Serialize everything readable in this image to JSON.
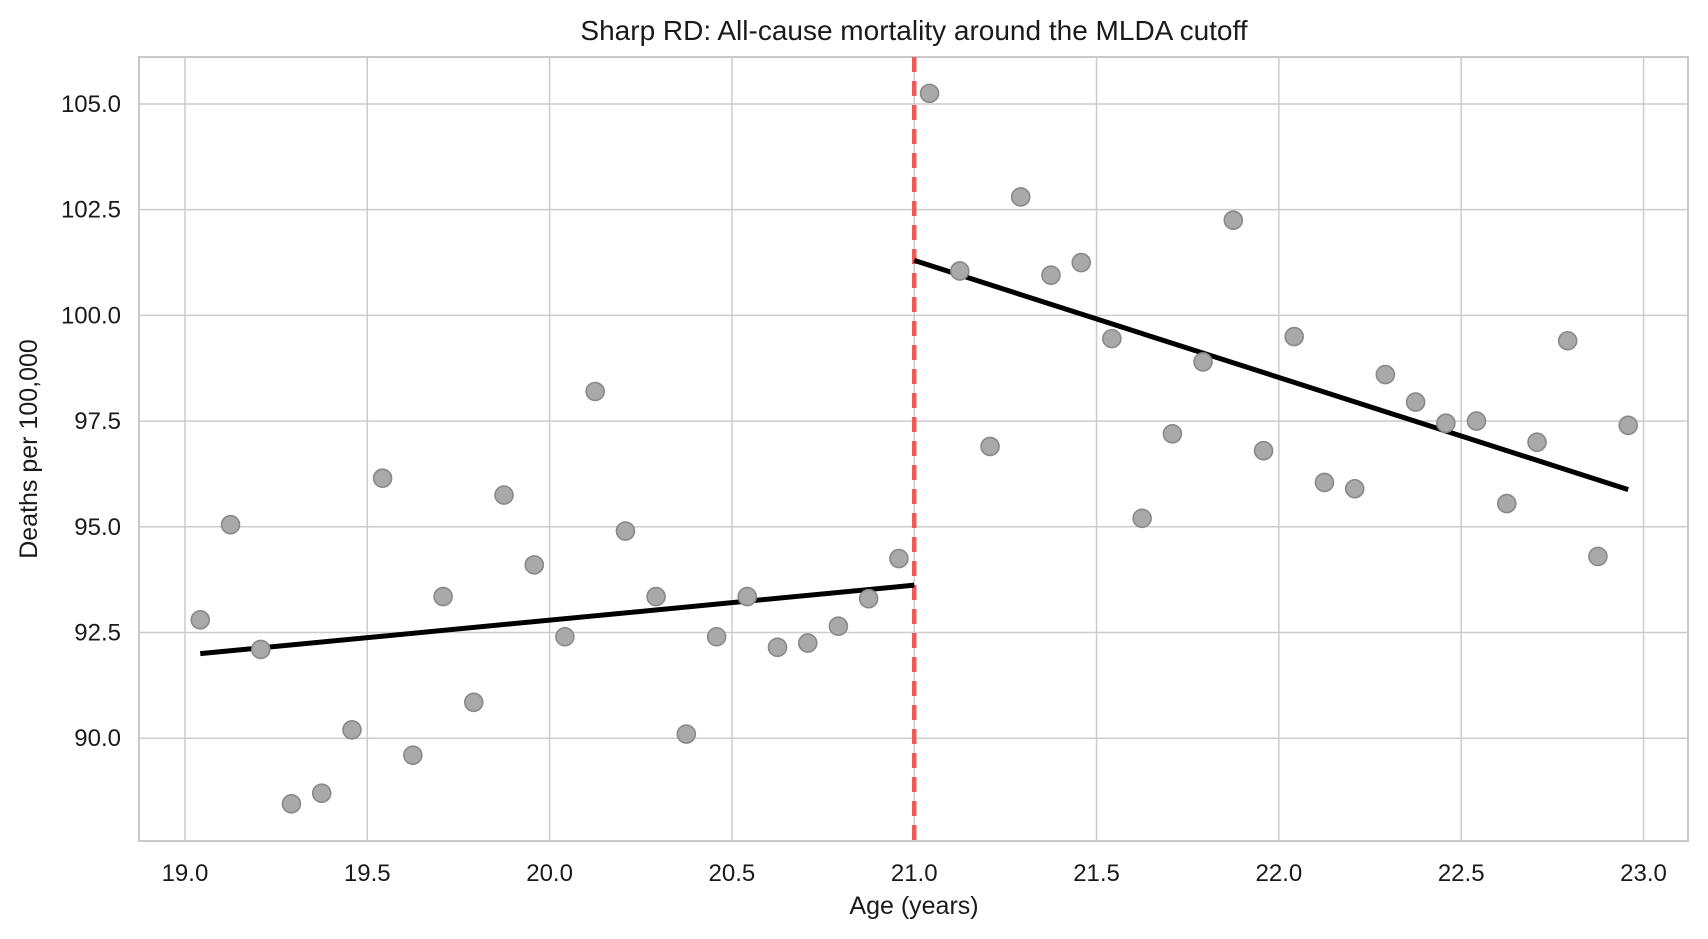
{
  "chart_data": {
    "type": "scatter",
    "title": "Sharp RD: All-cause mortality around the MLDA cutoff",
    "xlabel": "Age (years)",
    "ylabel": "Deaths per 100,000",
    "xlim": [
      18.874,
      23.122
    ],
    "ylim": [
      87.57,
      106.11
    ],
    "x_ticks": [
      19.0,
      19.5,
      20.0,
      20.5,
      21.0,
      21.5,
      22.0,
      22.5,
      23.0
    ],
    "y_ticks": [
      90.0,
      92.5,
      95.0,
      97.5,
      100.0,
      102.5,
      105.0
    ],
    "grid": true,
    "legend": "none",
    "cutoff_x": 21.0,
    "series": [
      {
        "name": "binned-means-below-cutoff",
        "points": [
          [
            19.042,
            92.8
          ],
          [
            19.125,
            95.05
          ],
          [
            19.208,
            92.1
          ],
          [
            19.292,
            88.45
          ],
          [
            19.375,
            88.7
          ],
          [
            19.458,
            90.2
          ],
          [
            19.542,
            96.15
          ],
          [
            19.625,
            89.6
          ],
          [
            19.708,
            93.35
          ],
          [
            19.792,
            90.85
          ],
          [
            19.875,
            95.75
          ],
          [
            19.958,
            94.1
          ],
          [
            20.042,
            92.4
          ],
          [
            20.125,
            98.2
          ],
          [
            20.208,
            94.9
          ],
          [
            20.292,
            93.35
          ],
          [
            20.375,
            90.1
          ],
          [
            20.458,
            92.4
          ],
          [
            20.542,
            93.35
          ],
          [
            20.625,
            92.15
          ],
          [
            20.708,
            92.25
          ],
          [
            20.792,
            92.65
          ],
          [
            20.875,
            93.3
          ],
          [
            20.958,
            94.25
          ]
        ]
      },
      {
        "name": "binned-means-above-cutoff",
        "points": [
          [
            21.042,
            105.25
          ],
          [
            21.125,
            101.05
          ],
          [
            21.208,
            96.9
          ],
          [
            21.292,
            102.8
          ],
          [
            21.375,
            100.95
          ],
          [
            21.458,
            101.25
          ],
          [
            21.542,
            99.45
          ],
          [
            21.625,
            95.2
          ],
          [
            21.708,
            97.2
          ],
          [
            21.792,
            98.9
          ],
          [
            21.875,
            102.25
          ],
          [
            21.958,
            96.8
          ],
          [
            22.042,
            99.5
          ],
          [
            22.125,
            96.05
          ],
          [
            22.208,
            95.9
          ],
          [
            22.292,
            98.6
          ],
          [
            22.375,
            97.95
          ],
          [
            22.458,
            97.45
          ],
          [
            22.542,
            97.5
          ],
          [
            22.625,
            95.55
          ],
          [
            22.708,
            97.0
          ],
          [
            22.792,
            99.4
          ],
          [
            22.875,
            94.3
          ],
          [
            22.958,
            97.4
          ]
        ]
      }
    ],
    "fit_lines": [
      {
        "name": "left-linear-fit",
        "x1": 19.042,
        "y1": 92.0,
        "x2": 21.0,
        "y2": 93.62
      },
      {
        "name": "right-linear-fit",
        "x1": 21.0,
        "y1": 101.3,
        "x2": 22.958,
        "y2": 95.88
      }
    ],
    "style": {
      "background": "#ffffff",
      "grid_color": "#cccccc",
      "spine_color": "#c9c9c9",
      "text_color": "#1a1a1a",
      "marker_fill": "#a9a9a9",
      "marker_edge": "#898989",
      "fit_line_color": "#000000",
      "cutoff_line_color": "#ee5a5a"
    }
  }
}
